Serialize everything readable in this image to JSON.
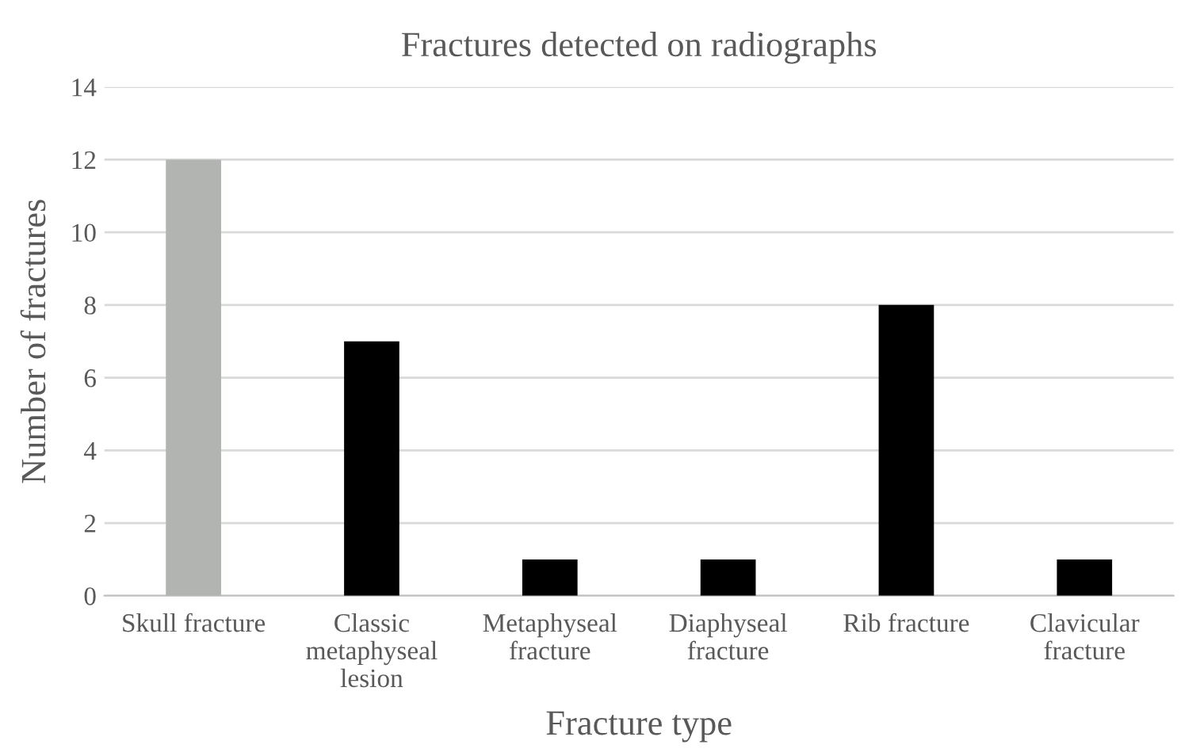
{
  "chart_data": {
    "type": "bar",
    "title": "Fractures detected on radiographs",
    "xlabel": "Fracture type",
    "ylabel": "Number of fractures",
    "categories": [
      "Skull fracture",
      "Classic\nmetaphyseal\nlesion",
      "Metaphyseal\nfracture",
      "Diaphyseal\nfracture",
      "Rib fracture",
      "Clavicular\nfracture"
    ],
    "values": [
      12,
      7,
      1,
      1,
      8,
      1
    ],
    "colors": [
      "#b1b4b1",
      "#000000",
      "#000000",
      "#000000",
      "#000000",
      "#000000"
    ],
    "ylim": [
      0,
      14
    ],
    "yticks": [
      0,
      2,
      4,
      6,
      8,
      10,
      12,
      14
    ],
    "grid": "y",
    "legend": false
  }
}
